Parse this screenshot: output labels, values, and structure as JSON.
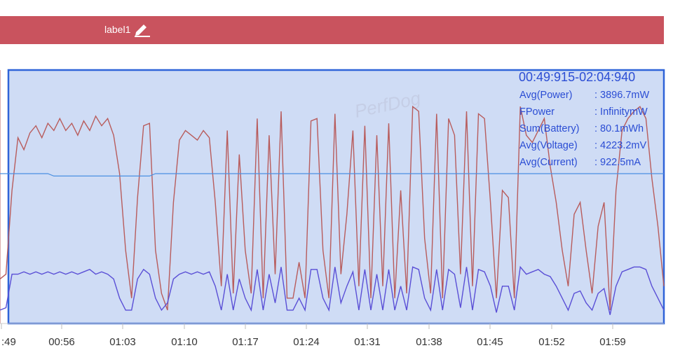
{
  "label": {
    "text": "label1"
  },
  "watermark": "PerfDog",
  "chart_data": {
    "type": "line",
    "time_range": "00:49:915-02:04:940",
    "x_ticks": [
      ":49",
      "00:56",
      "01:03",
      "01:10",
      "01:17",
      "01:24",
      "01:31",
      "01:38",
      "01:45",
      "01:52",
      "01:59"
    ],
    "stats": [
      {
        "label": "Avg(Power)",
        "value": ": 3896.7mW"
      },
      {
        "label": "FPower",
        "value": ": InfinitymW"
      },
      {
        "label": "Sum(Battery)",
        "value": ": 80.1mWh"
      },
      {
        "label": "Avg(Voltage)",
        "value": ": 4223.2mV"
      },
      {
        "label": "Avg(Current)",
        "value": ": 922.5mA"
      }
    ],
    "y_range": [
      0,
      1
    ],
    "series": [
      {
        "color": "#b85c5c",
        "values": [
          0.18,
          0.2,
          0.55,
          0.77,
          0.72,
          0.79,
          0.82,
          0.77,
          0.83,
          0.8,
          0.85,
          0.8,
          0.83,
          0.78,
          0.84,
          0.8,
          0.86,
          0.82,
          0.85,
          0.78,
          0.62,
          0.3,
          0.1,
          0.52,
          0.82,
          0.83,
          0.3,
          0.12,
          0.05,
          0.5,
          0.76,
          0.8,
          0.78,
          0.76,
          0.8,
          0.77,
          0.5,
          0.15,
          0.8,
          0.12,
          0.7,
          0.3,
          0.12,
          0.85,
          0.1,
          0.78,
          0.2,
          0.88,
          0.1,
          0.1,
          0.25,
          0.1,
          0.84,
          0.85,
          0.3,
          0.1,
          0.87,
          0.2,
          0.45,
          0.8,
          0.15,
          0.82,
          0.1,
          0.78,
          0.15,
          0.83,
          0.1,
          0.55,
          0.12,
          0.9,
          0.88,
          0.35,
          0.12,
          0.87,
          0.1,
          0.85,
          0.78,
          0.2,
          0.88,
          0.15,
          0.87,
          0.85,
          0.5,
          0.1,
          0.55,
          0.52,
          0.1,
          0.9,
          0.78,
          0.75,
          0.8,
          0.85,
          0.65,
          0.5,
          0.3,
          0.15,
          0.45,
          0.5,
          0.3,
          0.12,
          0.4,
          0.5,
          0.05,
          0.55,
          0.8,
          0.85,
          0.88,
          0.9,
          0.85,
          0.6,
          0.4,
          0.15
        ]
      },
      {
        "color": "#5a4fd6",
        "values": [
          0.05,
          0.06,
          0.2,
          0.2,
          0.21,
          0.2,
          0.21,
          0.2,
          0.21,
          0.2,
          0.21,
          0.2,
          0.21,
          0.2,
          0.21,
          0.22,
          0.2,
          0.21,
          0.2,
          0.18,
          0.1,
          0.05,
          0.05,
          0.18,
          0.22,
          0.2,
          0.1,
          0.05,
          0.08,
          0.18,
          0.2,
          0.21,
          0.2,
          0.21,
          0.2,
          0.21,
          0.15,
          0.05,
          0.2,
          0.05,
          0.18,
          0.1,
          0.05,
          0.22,
          0.05,
          0.2,
          0.08,
          0.23,
          0.05,
          0.05,
          0.1,
          0.05,
          0.22,
          0.22,
          0.1,
          0.05,
          0.23,
          0.08,
          0.15,
          0.21,
          0.05,
          0.22,
          0.05,
          0.2,
          0.05,
          0.22,
          0.05,
          0.15,
          0.05,
          0.23,
          0.22,
          0.1,
          0.05,
          0.22,
          0.05,
          0.22,
          0.2,
          0.06,
          0.23,
          0.05,
          0.22,
          0.21,
          0.15,
          0.04,
          0.15,
          0.15,
          0.05,
          0.23,
          0.2,
          0.21,
          0.22,
          0.2,
          0.19,
          0.15,
          0.1,
          0.05,
          0.12,
          0.13,
          0.08,
          0.05,
          0.12,
          0.14,
          0.03,
          0.15,
          0.21,
          0.22,
          0.23,
          0.23,
          0.22,
          0.15,
          0.1,
          0.05
        ]
      },
      {
        "color": "#4a90e2",
        "values": [
          0.62,
          0.62,
          0.62,
          0.62,
          0.62,
          0.62,
          0.62,
          0.62,
          0.62,
          0.61,
          0.61,
          0.61,
          0.61,
          0.61,
          0.61,
          0.61,
          0.61,
          0.61,
          0.61,
          0.61,
          0.61,
          0.61,
          0.61,
          0.61,
          0.61,
          0.61,
          0.62,
          0.62,
          0.62,
          0.62,
          0.62,
          0.62,
          0.62,
          0.62,
          0.62,
          0.62,
          0.62,
          0.62,
          0.62,
          0.62,
          0.62,
          0.62,
          0.62,
          0.62,
          0.62,
          0.62,
          0.62,
          0.62,
          0.62,
          0.62,
          0.62,
          0.62,
          0.62,
          0.62,
          0.62,
          0.62,
          0.62,
          0.62,
          0.62,
          0.62,
          0.62,
          0.62,
          0.62,
          0.62,
          0.62,
          0.62,
          0.62,
          0.62,
          0.62,
          0.62,
          0.62,
          0.62,
          0.62,
          0.62,
          0.62,
          0.62,
          0.62,
          0.62,
          0.62,
          0.62,
          0.62,
          0.62,
          0.62,
          0.62,
          0.62,
          0.62,
          0.62,
          0.62,
          0.62,
          0.62,
          0.62,
          0.62,
          0.62,
          0.62,
          0.62,
          0.62,
          0.62,
          0.62,
          0.62,
          0.62,
          0.62,
          0.62,
          0.62,
          0.62,
          0.62,
          0.62,
          0.62,
          0.62,
          0.62,
          0.62,
          0.62,
          0.62
        ]
      }
    ]
  }
}
